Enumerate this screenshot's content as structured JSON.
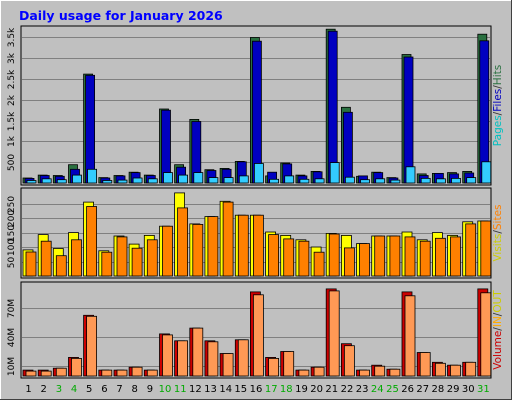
{
  "chart_data": {
    "type": "bar",
    "title": "Daily usage for January 2026",
    "x": [
      "1",
      "2",
      "3",
      "4",
      "5",
      "6",
      "7",
      "8",
      "9",
      "10",
      "11",
      "12",
      "13",
      "14",
      "15",
      "16",
      "17",
      "18",
      "19",
      "20",
      "21",
      "22",
      "23",
      "24",
      "25",
      "26",
      "27",
      "28",
      "29",
      "30",
      "31"
    ],
    "weekend_days": [
      "3",
      "4",
      "10",
      "11",
      "17",
      "18",
      "24",
      "25",
      "31"
    ],
    "panels": [
      {
        "name": "pages-files-hits",
        "ylabels": [
          {
            "text": "Pages",
            "color": "#00c0c0"
          },
          {
            "text": "/",
            "color": "#333333"
          },
          {
            "text": "Files",
            "color": "#0000c0"
          },
          {
            "text": "/",
            "color": "#333333"
          },
          {
            "text": "Hits",
            "color": "#2a7040"
          }
        ],
        "ticks": [
          {
            "value": 500,
            "label": "500"
          },
          {
            "value": 1000,
            "label": "1k"
          },
          {
            "value": 1500,
            "label": "1.5k"
          },
          {
            "value": 2000,
            "label": "2k"
          },
          {
            "value": 2500,
            "label": "2.5k"
          },
          {
            "value": 3000,
            "label": "3k"
          },
          {
            "value": 3500,
            "label": "3.5k"
          }
        ],
        "ylim": [
          0,
          3680
        ],
        "series": [
          {
            "key": "hits",
            "color": "#2a7040",
            "values": [
              120,
              190,
              180,
              440,
              2620,
              130,
              180,
              260,
              190,
              1780,
              440,
              1530,
              320,
              350,
              520,
              3500,
              170,
              480,
              190,
              280,
              3700,
              1820,
              160,
              260,
              130,
              3090,
              220,
              230,
              250,
              280,
              3580
            ]
          },
          {
            "key": "files",
            "color": "#0000c0",
            "values": [
              110,
              180,
              160,
              330,
              2590,
              120,
              170,
              250,
              180,
              1750,
              380,
              1480,
              300,
              330,
              510,
              3410,
              260,
              460,
              170,
              270,
              3650,
              1700,
              170,
              250,
              120,
              3030,
              180,
              230,
              220,
              240,
              3420
            ]
          },
          {
            "key": "pages",
            "color": "#33ccff",
            "values": [
              60,
              100,
              80,
              190,
              330,
              60,
              70,
              120,
              100,
              250,
              190,
              250,
              130,
              130,
              170,
              470,
              90,
              170,
              90,
              100,
              490,
              140,
              80,
              100,
              70,
              390,
              110,
              100,
              110,
              130,
              510
            ]
          }
        ]
      },
      {
        "name": "visits-sites",
        "ylabels": [
          {
            "text": "Visits",
            "color": "#cccc00"
          },
          {
            "text": "/",
            "color": "#333333"
          },
          {
            "text": "Sites",
            "color": "#ff8000"
          }
        ],
        "ticks": [
          {
            "value": 50,
            "label": "50"
          },
          {
            "value": 100,
            "label": "100"
          },
          {
            "value": 150,
            "label": "150"
          },
          {
            "value": 200,
            "label": "200"
          },
          {
            "value": 250,
            "label": "250"
          }
        ],
        "ylim": [
          0,
          290
        ],
        "series": [
          {
            "key": "visits",
            "color": "#ffff00",
            "values": [
              90,
              143,
              95,
              150,
              255,
              87,
              138,
              110,
              140,
              172,
              287,
              180,
              205,
              258,
              210,
              210,
              152,
              140,
              125,
              100,
              147,
              140,
              112,
              138,
              138,
              152,
              125,
              150,
              140,
              187,
              190
            ]
          },
          {
            "key": "sites",
            "color": "#ff8000",
            "values": [
              83,
              120,
              70,
              125,
              240,
              82,
              135,
              96,
              125,
              172,
              235,
              178,
              205,
              255,
              210,
              210,
              143,
              128,
              120,
              82,
              145,
              97,
              112,
              138,
              138,
              135,
              120,
              130,
              135,
              180,
              190
            ]
          }
        ]
      },
      {
        "name": "volume",
        "ylabels": [
          {
            "text": "Volume",
            "color": "#cc0000"
          },
          {
            "text": "/",
            "color": "#333333"
          },
          {
            "text": "IN",
            "color": "#ffaa00"
          },
          {
            "text": "/",
            "color": "#333333"
          },
          {
            "text": "OUT",
            "color": "#cccc00"
          }
        ],
        "ticks": [
          {
            "value": 10,
            "label": "10M"
          },
          {
            "value": 40,
            "label": "40M"
          },
          {
            "value": 70,
            "label": "70M"
          }
        ],
        "ylim": [
          0,
          92
        ],
        "series": [
          {
            "key": "volume",
            "color": "#cc0000",
            "values": [
              6,
              6,
              8,
              19,
              62,
              6,
              6,
              9,
              6,
              43,
              36,
              49,
              36,
              23,
              37,
              86,
              19,
              25,
              6,
              9,
              89,
              33,
              6,
              11,
              7,
              86,
              24,
              14,
              11,
              14,
              89
            ]
          },
          {
            "key": "out",
            "color": "#ff9955",
            "values": [
              5,
              5,
              8,
              18,
              61,
              6,
              6,
              9,
              6,
              42,
              36,
              49,
              35,
              23,
              37,
              83,
              18,
              25,
              6,
              9,
              87,
              31,
              6,
              10,
              7,
              82,
              24,
              13,
              11,
              14,
              85
            ]
          }
        ]
      }
    ]
  },
  "colors": {
    "page_bg": "#c0c0c0",
    "plot_bg": "#c0c0c0",
    "title": "#0000ff",
    "weekday_label": "#000000",
    "weekend_label": "#00aa00"
  }
}
